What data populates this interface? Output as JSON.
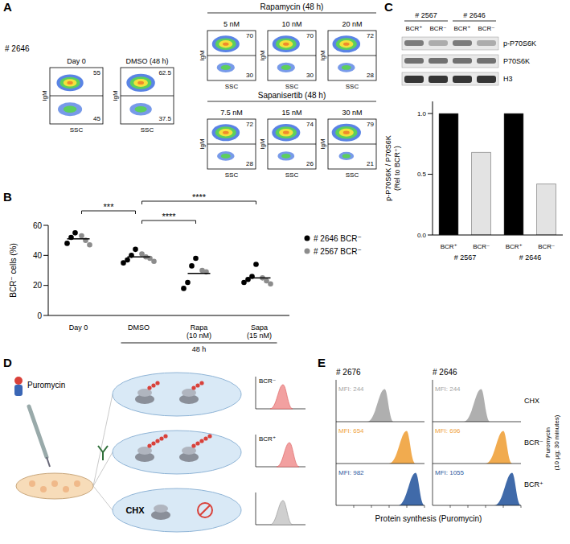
{
  "panel_A": {
    "letter": "A",
    "sample": "# 2646",
    "y_label": "IgM",
    "x_label": "SSC",
    "plots": [
      {
        "title": "Day 0",
        "upper": 55,
        "lower": 45
      },
      {
        "title": "DMSO (48 h)",
        "upper": 62.5,
        "lower": 37.5
      }
    ],
    "treatments": [
      {
        "title": "Rapamycin (48 h)",
        "plots": [
          {
            "title": "5 nM",
            "upper": 70,
            "lower": 30
          },
          {
            "title": "10 nM",
            "upper": 70,
            "lower": 30
          },
          {
            "title": "20 nM",
            "upper": 72,
            "lower": 28
          }
        ]
      },
      {
        "title": "Sapanisertib (48 h)",
        "plots": [
          {
            "title": "7.5 nM",
            "upper": 72,
            "lower": 28
          },
          {
            "title": "15 nM",
            "upper": 74,
            "lower": 26
          },
          {
            "title": "30 nM",
            "upper": 79,
            "lower": 21
          }
        ]
      }
    ]
  },
  "panel_C_blot": {
    "samples": [
      "# 2567",
      "# 2646"
    ],
    "lanes": [
      "BCR⁺",
      "BCR⁻",
      "BCR⁺",
      "BCR⁻"
    ],
    "rows": [
      "p-P70S6K",
      "P70S6K",
      "H3"
    ]
  },
  "chart_data": [
    {
      "panel": "B",
      "type": "scatter",
      "categories": [
        "Day 0",
        "DMSO",
        "Rapa (10 nM)",
        "Sapa (15 nM)"
      ],
      "y_label": "BCR⁻ cells (%)",
      "ylim": [
        0,
        60
      ],
      "yticks": [
        0,
        20,
        40,
        60
      ],
      "series": [
        {
          "name": "# 2646 BCR⁻",
          "color": "#000000",
          "values": [
            [
              55,
              52,
              48
            ],
            [
              44,
              40,
              37,
              35
            ],
            [
              38,
              33,
              22,
              18
            ],
            [
              34,
              26,
              24,
              22
            ]
          ]
        },
        {
          "name": "# 2567 BCR⁻",
          "color": "#8c8c8c",
          "values": [
            [
              53,
              50,
              47
            ],
            [
              41,
              39,
              38,
              36
            ],
            [
              30,
              29
            ],
            [
              25,
              23,
              21
            ]
          ]
        }
      ],
      "means": [
        51,
        39,
        28,
        25
      ],
      "group": {
        "label": "48 h",
        "categories": [
          "DMSO",
          "Rapa (10 nM)",
          "Sapa (15 nM)"
        ]
      },
      "comparisons": [
        {
          "from": "Day 0",
          "to": "DMSO",
          "label": "***"
        },
        {
          "from": "DMSO",
          "to": "Rapa (10 nM)",
          "label": "****"
        },
        {
          "from": "DMSO",
          "to": "Sapa (15 nM)",
          "label": "****"
        }
      ],
      "legend": "right"
    },
    {
      "panel": "C",
      "type": "bar",
      "categories": [
        "BCR⁺",
        "BCR⁻",
        "BCR⁺",
        "BCR⁻"
      ],
      "groups": [
        "# 2567",
        "# 2646"
      ],
      "values": [
        1.0,
        0.68,
        1.0,
        0.42
      ],
      "colors": [
        "#000000",
        "#e3e3e3",
        "#000000",
        "#e3e3e3"
      ],
      "y_label": "p-P70S6K / P70S6K (Rel to BCR⁺)",
      "ylim": [
        0,
        1.1
      ],
      "yticks": [
        {
          "value": 0,
          "label": "0.0"
        },
        {
          "value": 0.5,
          "label": "0.5"
        },
        {
          "value": 1,
          "label": "1.0"
        }
      ]
    }
  ],
  "panel_D": {
    "letter": "D",
    "reagent": "Puromycin",
    "conditions": [
      "BCR⁻",
      "BCR⁺",
      "CHX"
    ]
  },
  "panel_E": {
    "letter": "E",
    "samples": [
      {
        "title": "# 2676",
        "mfi": [
          {
            "value": 244,
            "label": "MFI: 244"
          },
          {
            "value": 654,
            "label": "MFI: 654"
          },
          {
            "value": 982,
            "label": "MFI: 982"
          }
        ]
      },
      {
        "title": "# 2646",
        "mfi": [
          {
            "value": 244,
            "label": "MFI: 244"
          },
          {
            "value": 696,
            "label": "MFI: 696"
          },
          {
            "value": 1055,
            "label": "MFI: 1055"
          }
        ]
      }
    ],
    "conditions": [
      {
        "name": "CHX",
        "color": "#a6a6a6"
      },
      {
        "name": "BCR⁻",
        "color": "#f0a23c"
      },
      {
        "name": "BCR⁺",
        "color": "#2b5aa0"
      }
    ],
    "side_label": "Puromycin (10 μg; 30 minutes)",
    "x_label": "Protein synthesis (Puromycin)"
  }
}
